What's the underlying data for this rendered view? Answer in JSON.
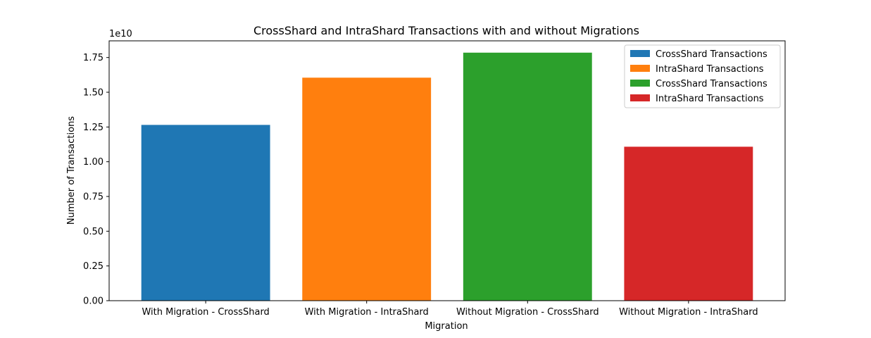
{
  "chart_data": {
    "type": "bar",
    "title": "CrossShard and IntraShard Transactions with and without Migrations",
    "xlabel": "Migration",
    "ylabel": "Number of Transactions",
    "offset_text": "1e10",
    "categories": [
      "With Migration - CrossShard",
      "With Migration - IntraShard",
      "Without Migration - CrossShard",
      "Without Migration - IntraShard"
    ],
    "values": [
      1.265,
      1.605,
      1.785,
      1.108
    ],
    "value_scale": 10000000000,
    "colors": [
      "#1f77b4",
      "#ff7f0e",
      "#2ca02c",
      "#d62728"
    ],
    "ylim": [
      0,
      1.87
    ],
    "yticks": [
      "0.00",
      "0.25",
      "0.50",
      "0.75",
      "1.00",
      "1.25",
      "1.50",
      "1.75"
    ],
    "grid": false,
    "legend_position": "top-right",
    "legend": [
      {
        "label": "CrossShard Transactions",
        "color": "#1f77b4"
      },
      {
        "label": "IntraShard Transactions",
        "color": "#ff7f0e"
      },
      {
        "label": "CrossShard Transactions",
        "color": "#2ca02c"
      },
      {
        "label": "IntraShard Transactions",
        "color": "#d62728"
      }
    ]
  }
}
